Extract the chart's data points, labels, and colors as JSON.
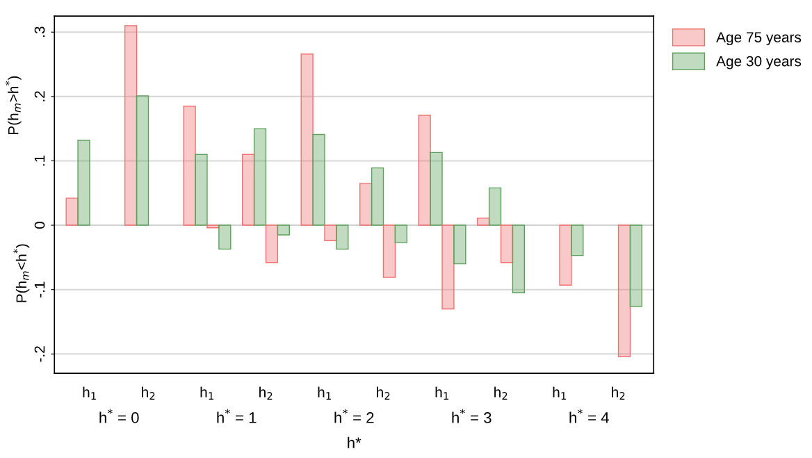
{
  "chart_data": {
    "type": "bar",
    "categories": [
      "h$_{1}$",
      "h$_{2}$",
      "h$_{1}$",
      "h$_{2}$",
      "h$_{1}$",
      "h$_{2}$",
      "h$_{1}$",
      "h$_{2}$",
      "h$_{1}$",
      "h$_{2}$"
    ],
    "series": [
      {
        "name": "Age 75 years",
        "color": "#f07070",
        "values": [
          0.042,
          0.31,
          0.185,
          0.11,
          0.266,
          0.065,
          0.171,
          0.011,
          null,
          null
        ]
      },
      {
        "name": "Age 30 years",
        "color": "#5ca05c",
        "values": [
          0.132,
          0.201,
          0.11,
          0.15,
          0.141,
          0.089,
          0.113,
          0.058,
          null,
          null
        ]
      },
      {
        "color": "#f07070",
        "values": [
          null,
          null,
          -0.004,
          -0.058,
          -0.024,
          -0.081,
          -0.13,
          -0.058,
          -0.093,
          -0.204
        ]
      },
      {
        "color": "#5ca05c",
        "values": [
          null,
          null,
          -0.037,
          -0.015,
          -0.037,
          -0.027,
          -0.06,
          -0.105,
          -0.047,
          -0.126
        ]
      }
    ],
    "xlabel": "h*",
    "ylabel": "P(h$_{m}$>h$^{*}$)",
    "annotations": [
      "P(h$_{m}$<h$^{*}$)",
      "h$^{*}$ = 0",
      "h$^{*}$ = 1",
      "h$^{*}$ = 2",
      "h$^{*}$ = 3",
      "h$^{*}$ = 4"
    ],
    "ylim": [
      -0.23,
      0.325
    ],
    "yticks": [
      {
        "value": -0.2,
        "label": "-.2"
      },
      {
        "value": -0.1,
        "label": "-.1"
      },
      0,
      {
        "value": 0.1,
        "label": ".1"
      },
      {
        "value": 0.2,
        "label": ".2"
      },
      {
        "value": 0.3,
        "label": ".3"
      }
    ],
    "grid": "y",
    "legend": "top right"
  }
}
